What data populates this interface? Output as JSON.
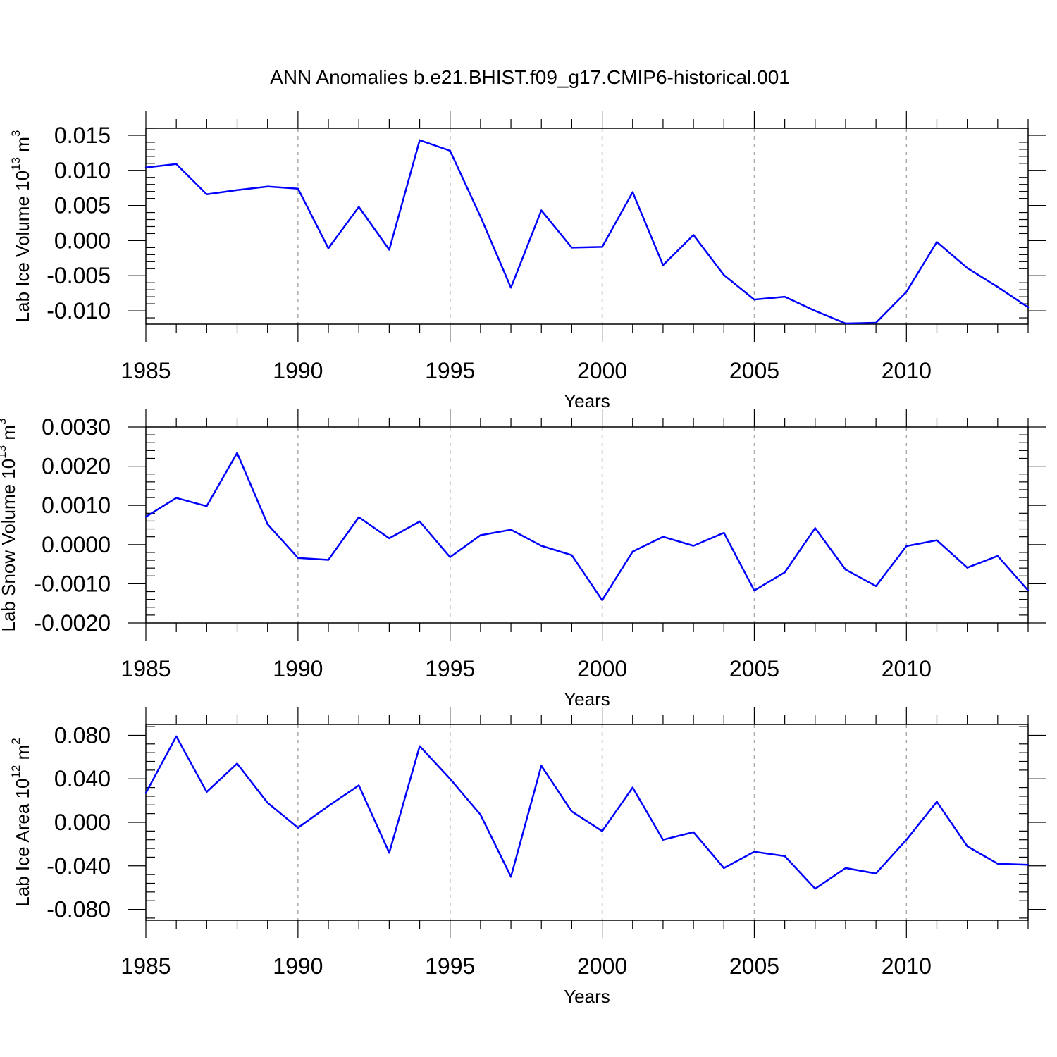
{
  "title": "ANN Anomalies b.e21.BHIST.f09_g17.CMIP6-historical.001",
  "colors": {
    "line": "#0000ff",
    "frame": "#000000",
    "grid": "#aaaaaa"
  },
  "chart_data": [
    {
      "type": "line",
      "xlabel": "Years",
      "ylabel": {
        "text": "Lab Ice Volume 10",
        "exponent": "13",
        "unit": " m",
        "unit_exponent": "3"
      },
      "xlim": [
        1985,
        2014
      ],
      "ylim": [
        -0.0119,
        0.016
      ],
      "x_ticks": [
        "1985",
        "1990",
        "1995",
        "2000",
        "2005",
        "2010"
      ],
      "y_ticks": [
        0.015,
        0.01,
        0.005,
        0.0,
        -0.005,
        -0.01
      ],
      "y_tick_labels": [
        "0.015",
        "0.010",
        "0.005",
        "0.000",
        "-0.005",
        "-0.010"
      ],
      "grid": "vertical dashed at labeled years",
      "series": [
        {
          "x": [
            1985,
            1986,
            1987,
            1988,
            1989,
            1990,
            1991,
            1992,
            1993,
            1994,
            1995,
            1996,
            1997,
            1998,
            1999,
            2000,
            2001,
            2002,
            2003,
            2004,
            2005,
            2006,
            2007,
            2008,
            2009,
            2010,
            2011,
            2012,
            2013,
            2014
          ],
          "values": [
            0.0104,
            0.0109,
            0.0066,
            0.0072,
            0.0077,
            0.0074,
            -0.0011,
            0.0048,
            -0.0013,
            0.0143,
            0.0128,
            0.0034,
            -0.0067,
            0.0043,
            -0.001,
            -0.0009,
            0.0069,
            -0.0035,
            0.0008,
            -0.0049,
            -0.0084,
            -0.008,
            -0.01,
            -0.0118,
            -0.0117,
            -0.0073,
            -0.0002,
            -0.0039,
            -0.0066,
            -0.0095
          ]
        }
      ]
    },
    {
      "type": "line",
      "xlabel": "Years",
      "ylabel": {
        "text": "Lab Snow Volume 10",
        "exponent": "13",
        "unit": " m",
        "unit_exponent": "3"
      },
      "xlim": [
        1985,
        2014
      ],
      "ylim": [
        -0.002,
        0.003
      ],
      "x_ticks": [
        "1985",
        "1990",
        "1995",
        "2000",
        "2005",
        "2010"
      ],
      "y_ticks": [
        0.003,
        0.002,
        0.001,
        0.0,
        -0.001,
        -0.002
      ],
      "y_tick_labels": [
        "0.0030",
        "0.0020",
        "0.0010",
        "0.0000",
        "-0.0010",
        "-0.0020"
      ],
      "grid": "vertical dashed at labeled years",
      "series": [
        {
          "x": [
            1985,
            1986,
            1987,
            1988,
            1989,
            1990,
            1991,
            1992,
            1993,
            1994,
            1995,
            1996,
            1997,
            1998,
            1999,
            2000,
            2001,
            2002,
            2003,
            2004,
            2005,
            2006,
            2007,
            2008,
            2009,
            2010,
            2011,
            2012,
            2013,
            2014
          ],
          "values": [
            0.00071,
            0.00119,
            0.00098,
            0.00234,
            0.00052,
            -0.00034,
            -0.00039,
            0.0007,
            0.00016,
            0.00059,
            -0.00032,
            0.00024,
            0.00038,
            -3e-05,
            -0.00027,
            -0.00142,
            -0.00018,
            0.0002,
            -3e-05,
            0.0003,
            -0.00117,
            -0.00071,
            0.00042,
            -0.00064,
            -0.00106,
            -4e-05,
            0.00011,
            -0.00059,
            -0.00029,
            -0.00117
          ]
        }
      ]
    },
    {
      "type": "line",
      "xlabel": "Years",
      "ylabel": {
        "text": "Lab Ice Area 10",
        "exponent": "12",
        "unit": " m",
        "unit_exponent": "2"
      },
      "xlim": [
        1985,
        2014
      ],
      "ylim": [
        -0.09,
        0.09
      ],
      "x_ticks": [
        "1985",
        "1990",
        "1995",
        "2000",
        "2005",
        "2010"
      ],
      "y_ticks": [
        0.08,
        0.04,
        0.0,
        -0.04,
        -0.08
      ],
      "y_tick_labels": [
        "0.080",
        "0.040",
        "0.000",
        "-0.040",
        "-0.080"
      ],
      "grid": "vertical dashed at labeled years",
      "series": [
        {
          "x": [
            1985,
            1986,
            1987,
            1988,
            1989,
            1990,
            1991,
            1992,
            1993,
            1994,
            1995,
            1996,
            1997,
            1998,
            1999,
            2000,
            2001,
            2002,
            2003,
            2004,
            2005,
            2006,
            2007,
            2008,
            2009,
            2010,
            2011,
            2012,
            2013,
            2014
          ],
          "values": [
            0.027,
            0.079,
            0.028,
            0.054,
            0.018,
            -0.005,
            0.015,
            0.034,
            -0.028,
            0.07,
            0.04,
            0.007,
            -0.05,
            0.052,
            0.01,
            -0.008,
            0.032,
            -0.016,
            -0.009,
            -0.042,
            -0.027,
            -0.031,
            -0.061,
            -0.042,
            -0.047,
            -0.016,
            0.019,
            -0.022,
            -0.038,
            -0.039
          ]
        }
      ]
    }
  ]
}
